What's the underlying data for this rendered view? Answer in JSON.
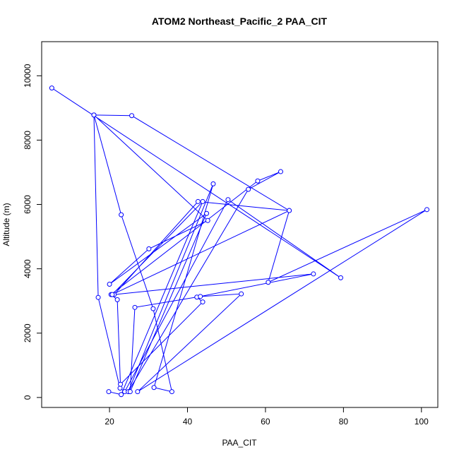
{
  "chart_data": {
    "type": "line",
    "title": "ATOM2 Northeast_Pacific_2 PAA_CIT",
    "xlabel": "PAA_CIT",
    "ylabel": "Altitude (m)",
    "xlim": [
      2.6,
      104.2
    ],
    "ylim": [
      -310,
      11060
    ],
    "xticks": [
      20,
      40,
      60,
      80,
      100
    ],
    "yticks": [
      0,
      2000,
      4000,
      6000,
      8000,
      10000
    ],
    "grid": false,
    "legend": "none",
    "color": "#0000ff",
    "series": [
      {
        "x": [
          5.2,
          79.3,
          50.4,
          23.9,
          22.7,
          17.1,
          16.0,
          23.0,
          31.2,
          36.0,
          31.4,
          46.6,
          24.8,
          55.6,
          63.9,
          58.0,
          20.4,
          22.0,
          22.8,
          43.9,
          42.4,
          72.3,
          21.2,
          42.7,
          66.1,
          60.7,
          101.4,
          27.2,
          53.8,
          43.3,
          26.5,
          25.3,
          44.9,
          20.0,
          30.1,
          45.2,
          16.0,
          25.7,
          66.1,
          20.7,
          43.9,
          23.0,
          19.8
        ],
        "y": [
          9620,
          3720,
          6150,
          180,
          290,
          3110,
          8780,
          5680,
          2760,
          180,
          310,
          6640,
          180,
          6470,
          7020,
          6730,
          3200,
          3040,
          410,
          2970,
          3120,
          3840,
          3200,
          6090,
          5810,
          3580,
          5840,
          180,
          3220,
          3140,
          2800,
          180,
          5720,
          3520,
          4620,
          5500,
          8780,
          8760,
          5810,
          3200,
          6090,
          90,
          180
        ]
      }
    ]
  }
}
